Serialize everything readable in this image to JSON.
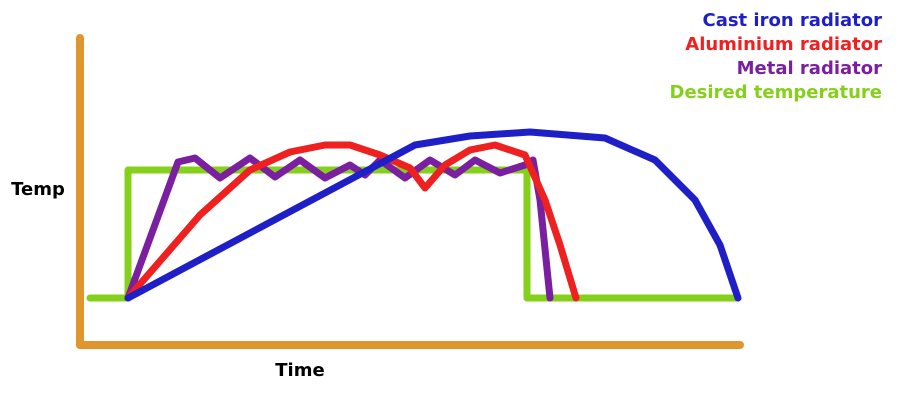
{
  "chart_data": {
    "type": "line",
    "x_label": "Time",
    "y_label": "Temp",
    "xlim": [
      0,
      660
    ],
    "ylim": [
      0,
      307
    ],
    "legend": "top-right",
    "series": [
      {
        "name": "Cast iron radiator",
        "color": "#1f1fc8",
        "x": [
          48,
          335,
          390,
          450,
          525,
          575,
          615,
          640,
          658
        ],
        "values": [
          47,
          200,
          209,
          213,
          207,
          185,
          145,
          100,
          47
        ]
      },
      {
        "name": "Aluminium radiator",
        "color": "#ee2020",
        "x": [
          48,
          120,
          170,
          210,
          245,
          270,
          300,
          330,
          345,
          365,
          390,
          415,
          445,
          465,
          480,
          496
        ],
        "values": [
          47,
          130,
          175,
          193,
          200,
          200,
          190,
          177,
          157,
          180,
          195,
          200,
          190,
          145,
          100,
          47
        ]
      },
      {
        "name": "Metal radiator",
        "color": "#7a1fa0",
        "x": [
          48,
          98,
          115,
          140,
          170,
          195,
          220,
          245,
          270,
          285,
          300,
          325,
          350,
          375,
          395,
          420,
          445,
          453,
          460,
          470
        ],
        "values": [
          47,
          183,
          187,
          167,
          187,
          168,
          185,
          167,
          180,
          170,
          185,
          167,
          185,
          170,
          185,
          172,
          180,
          185,
          145,
          47
        ]
      },
      {
        "name": "Desired temperature",
        "color": "#84d01a",
        "x": [
          10,
          48,
          48,
          447,
          447,
          658
        ],
        "values": [
          47,
          47,
          175,
          175,
          47,
          47
        ]
      }
    ]
  }
}
